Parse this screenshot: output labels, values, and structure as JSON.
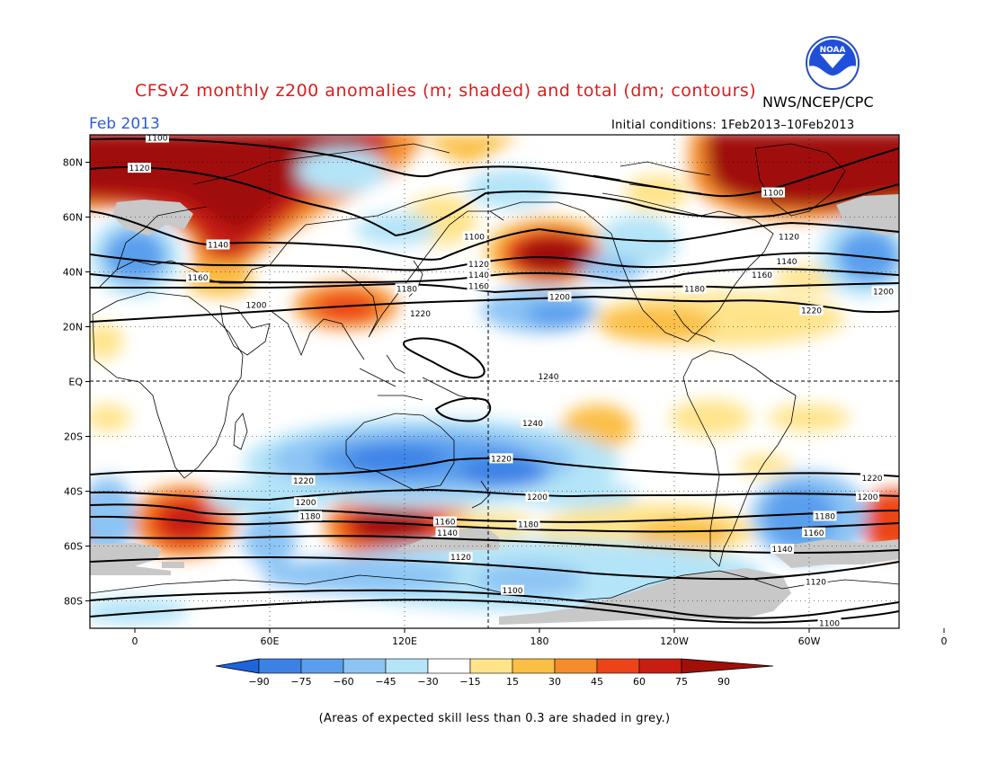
{
  "title": "CFSv2 monthly z200 anomalies (m; shaded) and total (dm; contours)",
  "agency": "NWS/NCEP/CPC",
  "logo_text": "NOAA",
  "period": "Feb 2013",
  "initial_conditions": "Initial conditions: 1Feb2013–10Feb2013",
  "footnote": "(Areas of expected skill less than 0.3 are shaded in grey.)",
  "colors": {
    "title": "#d81e1e",
    "period": "#2e5bd8",
    "low_skill": "#c8c8c8"
  },
  "map": {
    "lon_ticks": [
      "0",
      "60E",
      "120E",
      "180",
      "120W",
      "60W",
      "0"
    ],
    "lat_ticks": [
      "80N",
      "60N",
      "40N",
      "20N",
      "EQ",
      "20S",
      "40S",
      "60S",
      "80S"
    ]
  },
  "colorbar": {
    "labels": [
      "−90",
      "−75",
      "−60",
      "−45",
      "−30",
      "−15",
      "15",
      "30",
      "45",
      "60",
      "75",
      "90"
    ],
    "colors": [
      "#1e64dc",
      "#3c82e6",
      "#5a9fee",
      "#8cc4f4",
      "#b4e4f8",
      "#ffffff",
      "#ffe48c",
      "#fbbf46",
      "#f58c2a",
      "#ec4418",
      "#c81e12",
      "#a01008"
    ]
  },
  "contour_labels": [
    {
      "text": "1100",
      "lon": 10,
      "lat": 89
    },
    {
      "text": "1120",
      "lon": 2,
      "lat": 78
    },
    {
      "text": "1140",
      "lon": 37,
      "lat": 50
    },
    {
      "text": "1160",
      "lon": 28,
      "lat": 38
    },
    {
      "text": "1100",
      "lon": 151,
      "lat": 53
    },
    {
      "text": "1120",
      "lon": 153,
      "lat": 43
    },
    {
      "text": "1140",
      "lon": 153,
      "lat": 39
    },
    {
      "text": "1160",
      "lon": 153,
      "lat": 35
    },
    {
      "text": "1180",
      "lon": 121,
      "lat": 34
    },
    {
      "text": "1200",
      "lon": 54,
      "lat": 28
    },
    {
      "text": "1220",
      "lon": 127,
      "lat": 25
    },
    {
      "text": "1200",
      "lon": 189,
      "lat": 31
    },
    {
      "text": "1240",
      "lon": 184,
      "lat": 2
    },
    {
      "text": "1240",
      "lon": 177,
      "lat": -15
    },
    {
      "text": "1100",
      "lon": 284,
      "lat": 69
    },
    {
      "text": "1120",
      "lon": 291,
      "lat": 53
    },
    {
      "text": "1140",
      "lon": 290,
      "lat": 44
    },
    {
      "text": "1160",
      "lon": 279,
      "lat": 39
    },
    {
      "text": "1180",
      "lon": 249,
      "lat": 34
    },
    {
      "text": "1200",
      "lon": 333,
      "lat": 33
    },
    {
      "text": "1220",
      "lon": 301,
      "lat": 26
    },
    {
      "text": "1220",
      "lon": 163,
      "lat": -28
    },
    {
      "text": "1220",
      "lon": 328,
      "lat": -35
    },
    {
      "text": "1220",
      "lon": 75,
      "lat": -36
    },
    {
      "text": "1200",
      "lon": 76,
      "lat": -44
    },
    {
      "text": "1200",
      "lon": 179,
      "lat": -42
    },
    {
      "text": "1200",
      "lon": 326,
      "lat": -42
    },
    {
      "text": "1180",
      "lon": 78,
      "lat": -49
    },
    {
      "text": "1160",
      "lon": 138,
      "lat": -51
    },
    {
      "text": "1180",
      "lon": 175,
      "lat": -52
    },
    {
      "text": "1180",
      "lon": 307,
      "lat": -49
    },
    {
      "text": "1140",
      "lon": 139,
      "lat": -55
    },
    {
      "text": "1160",
      "lon": 302,
      "lat": -55
    },
    {
      "text": "1140",
      "lon": 288,
      "lat": -61
    },
    {
      "text": "1120",
      "lon": 145,
      "lat": -64
    },
    {
      "text": "1120",
      "lon": 303,
      "lat": -73
    },
    {
      "text": "1100",
      "lon": 168,
      "lat": -76
    },
    {
      "text": "1100",
      "lon": 309,
      "lat": -88
    }
  ]
}
